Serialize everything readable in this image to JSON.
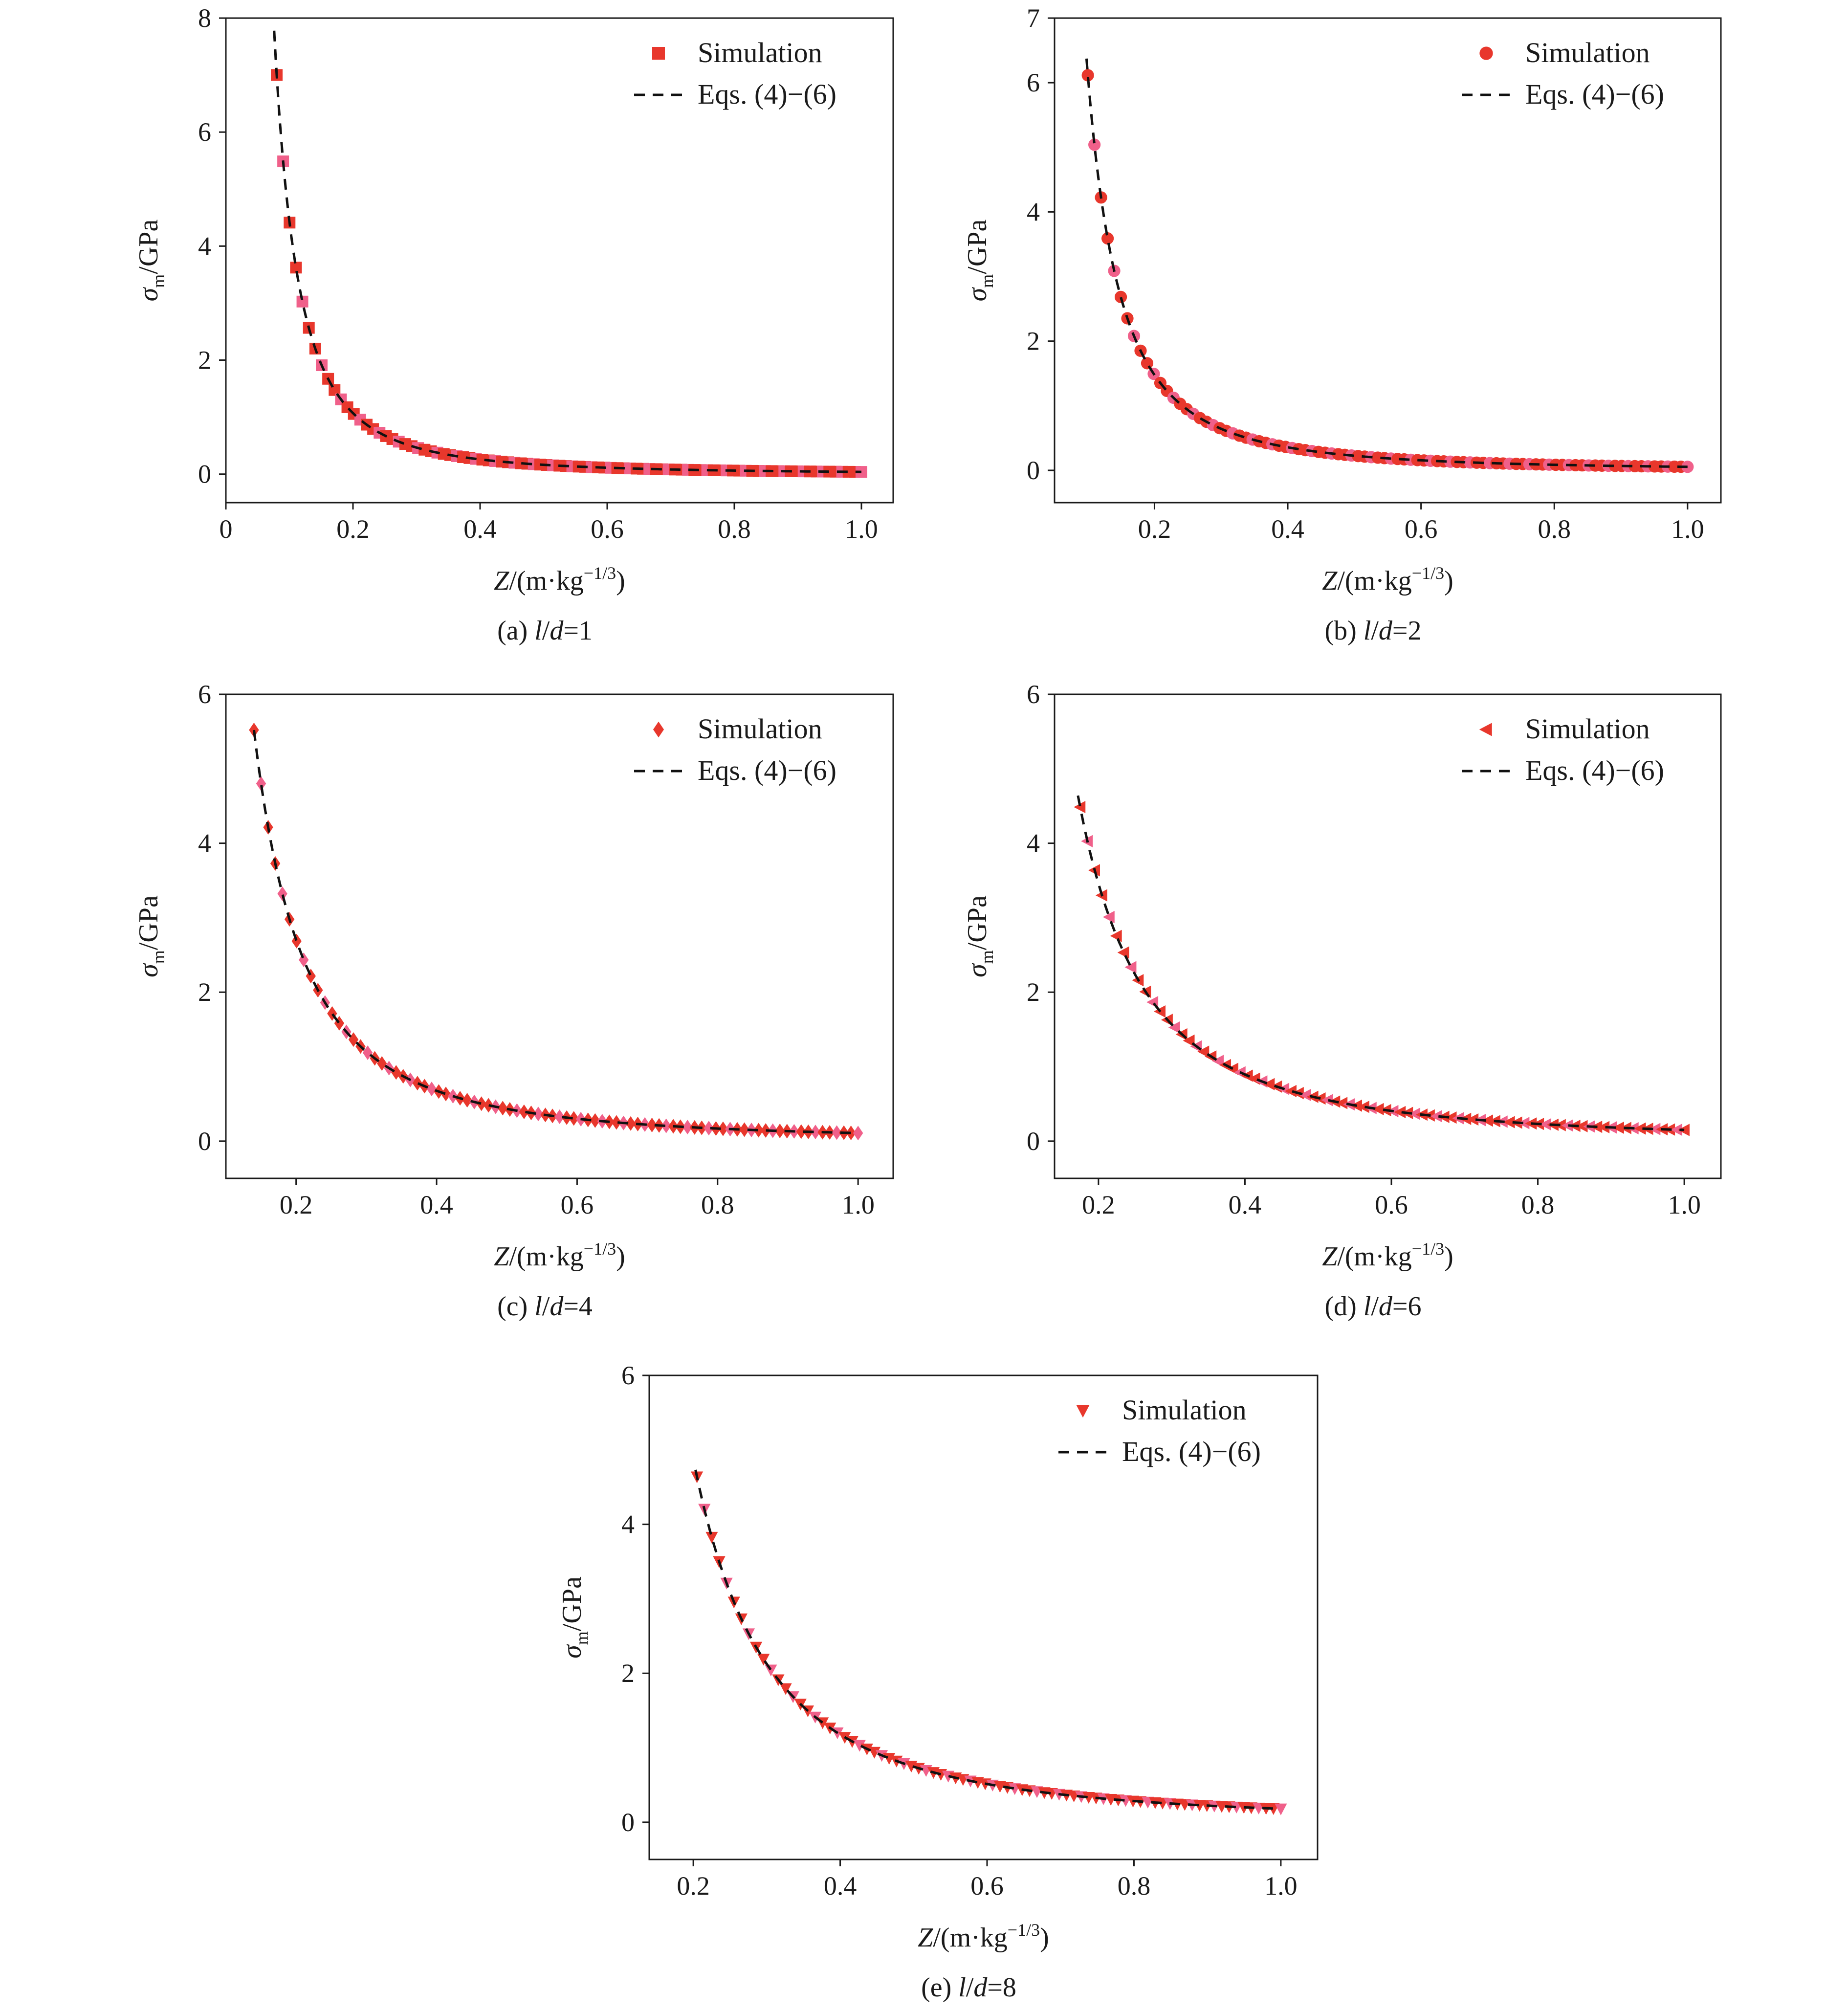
{
  "figure": {
    "axis_titles": {
      "x": {
        "var": "Z",
        "unit_open": "/(m·kg",
        "unit_exp": "−1/3",
        "unit_close": ")"
      },
      "y": {
        "var": "σ",
        "sub": "m",
        "unit": "/GPa"
      }
    },
    "legend": {
      "marker_label": "Simulation",
      "line_label": "Eqs. (4)−(6)"
    },
    "colors": {
      "marker_main": "#e8372c",
      "marker_accent": "#f0608a",
      "curve": "#111111",
      "axes": "#1a1a1a"
    }
  },
  "chart_data": [
    {
      "id": "a",
      "type": "scatter",
      "marker": "square",
      "caption": {
        "prefix": "(a) ",
        "l": "l",
        "slash": "/",
        "d": "d",
        "value": "=1"
      },
      "xlim": [
        0,
        1.05
      ],
      "ylim": [
        -0.5,
        8
      ],
      "xticks": [
        0,
        0.2,
        0.4,
        0.6,
        0.8,
        1.0
      ],
      "xtick_labels": [
        "0",
        "0.2",
        "0.4",
        "0.6",
        "0.8",
        "1.0"
      ],
      "yticks": [
        0,
        2,
        4,
        6,
        8
      ],
      "ytick_labels": [
        "0",
        "2",
        "4",
        "6",
        "8"
      ],
      "legend_position": "top-right",
      "series": [
        {
          "name": "Simulation",
          "x_start": 0.08,
          "x_end": 1.0,
          "count": 92,
          "formula": "0.0395*x^-2.05"
        },
        {
          "name": "Eqs. (4)−(6)",
          "x_start": 0.076,
          "x_end": 1.0,
          "formula": "0.0395*x^-2.05"
        }
      ]
    },
    {
      "id": "b",
      "type": "scatter",
      "marker": "circle",
      "caption": {
        "prefix": "(b) ",
        "l": "l",
        "slash": "/",
        "d": "d",
        "value": "=2"
      },
      "xlim": [
        0.05,
        1.05
      ],
      "ylim": [
        -0.5,
        7
      ],
      "xticks": [
        0.2,
        0.4,
        0.6,
        0.8,
        1.0
      ],
      "xtick_labels": [
        "0.2",
        "0.4",
        "0.6",
        "0.8",
        "1.0"
      ],
      "yticks": [
        0,
        2,
        4,
        6,
        7
      ],
      "ytick_labels": [
        "0",
        "2",
        "4",
        "6",
        "7"
      ],
      "legend_position": "top-right",
      "series": [
        {
          "name": "Simulation",
          "x_start": 0.1,
          "x_end": 1.0,
          "count": 92,
          "formula": "0.0545*x^-2.05"
        },
        {
          "name": "Eqs. (4)−(6)",
          "x_start": 0.098,
          "x_end": 1.0,
          "formula": "0.0545*x^-2.05"
        }
      ]
    },
    {
      "id": "c",
      "type": "scatter",
      "marker": "diamond",
      "caption": {
        "prefix": "(c) ",
        "l": "l",
        "slash": "/",
        "d": "d",
        "value": "=4"
      },
      "xlim": [
        0.1,
        1.05
      ],
      "ylim": [
        -0.5,
        6
      ],
      "xticks": [
        0.2,
        0.4,
        0.6,
        0.8,
        1.0
      ],
      "xtick_labels": [
        "0.2",
        "0.4",
        "0.6",
        "0.8",
        "1.0"
      ],
      "yticks": [
        0,
        2,
        4,
        6
      ],
      "ytick_labels": [
        "0",
        "2",
        "4",
        "6"
      ],
      "legend_position": "top-right",
      "series": [
        {
          "name": "Simulation",
          "x_start": 0.14,
          "x_end": 1.0,
          "count": 86,
          "formula": "0.1082*x^-2.0"
        },
        {
          "name": "Eqs. (4)−(6)",
          "x_start": 0.14,
          "x_end": 1.0,
          "formula": "0.1082*x^-2.0"
        }
      ]
    },
    {
      "id": "d",
      "type": "scatter",
      "marker": "triangle-left",
      "caption": {
        "prefix": "(d) ",
        "l": "l",
        "slash": "/",
        "d": "d",
        "value": "=6"
      },
      "xlim": [
        0.14,
        1.05
      ],
      "ylim": [
        -0.5,
        6
      ],
      "xticks": [
        0.2,
        0.4,
        0.6,
        0.8,
        1.0
      ],
      "xtick_labels": [
        "0.2",
        "0.4",
        "0.6",
        "0.8",
        "1.0"
      ],
      "yticks": [
        0,
        2,
        4,
        6
      ],
      "ytick_labels": [
        "0",
        "2",
        "4",
        "6"
      ],
      "legend_position": "top-right",
      "series": [
        {
          "name": "Simulation",
          "x_start": 0.175,
          "x_end": 1.0,
          "count": 84,
          "formula": "0.1499*x^-1.95"
        },
        {
          "name": "Eqs. (4)−(6)",
          "x_start": 0.172,
          "x_end": 1.0,
          "formula": "0.1499*x^-1.95"
        }
      ]
    },
    {
      "id": "e",
      "type": "scatter",
      "marker": "triangle-down",
      "caption": {
        "prefix": "(e) ",
        "l": "l",
        "slash": "/",
        "d": "d",
        "value": "=8"
      },
      "xlim": [
        0.14,
        1.05
      ],
      "ylim": [
        -0.5,
        6
      ],
      "xticks": [
        0.2,
        0.4,
        0.6,
        0.8,
        1.0
      ],
      "xtick_labels": [
        "0.2",
        "0.4",
        "0.6",
        "0.8",
        "1.0"
      ],
      "yticks": [
        0,
        2,
        4,
        6
      ],
      "ytick_labels": [
        "0",
        "2",
        "4",
        "6"
      ],
      "legend_position": "top-right",
      "series": [
        {
          "name": "Simulation",
          "x_start": 0.205,
          "x_end": 1.0,
          "count": 80,
          "formula": "0.1801*x^-2.05"
        },
        {
          "name": "Eqs. (4)−(6)",
          "x_start": 0.203,
          "x_end": 1.0,
          "formula": "0.1801*x^-2.05"
        }
      ]
    }
  ]
}
